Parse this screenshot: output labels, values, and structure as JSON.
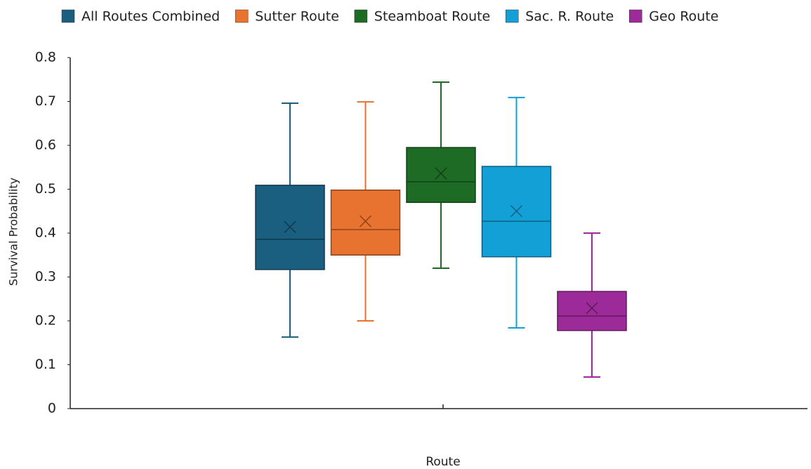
{
  "chart_data": {
    "type": "box",
    "x_label": "Route",
    "y_label": "Survival Probability",
    "ylim": [
      0,
      0.8
    ],
    "yticks": [
      0,
      0.1,
      0.2,
      0.3,
      0.4,
      0.5,
      0.6,
      0.7,
      0.8
    ],
    "legend": "top",
    "series": [
      {
        "name": "All Routes Combined",
        "color": "#1a5e80",
        "min": 0.163,
        "q1": 0.317,
        "median": 0.386,
        "q3": 0.509,
        "max": 0.696,
        "mean": 0.414
      },
      {
        "name": "Sutter Route",
        "color": "#e8722f",
        "min": 0.2,
        "q1": 0.35,
        "median": 0.408,
        "q3": 0.498,
        "max": 0.699,
        "mean": 0.427
      },
      {
        "name": "Steamboat Route",
        "color": "#1e6b25",
        "min": 0.32,
        "q1": 0.47,
        "median": 0.517,
        "q3": 0.595,
        "max": 0.744,
        "mean": 0.536
      },
      {
        "name": "Sac. R. Route",
        "color": "#12a0d7",
        "min": 0.184,
        "q1": 0.346,
        "median": 0.427,
        "q3": 0.552,
        "max": 0.709,
        "mean": 0.45
      },
      {
        "name": "Geo Route",
        "color": "#9c2a98",
        "min": 0.072,
        "q1": 0.178,
        "median": 0.211,
        "q3": 0.267,
        "max": 0.4,
        "mean": 0.229
      }
    ]
  }
}
